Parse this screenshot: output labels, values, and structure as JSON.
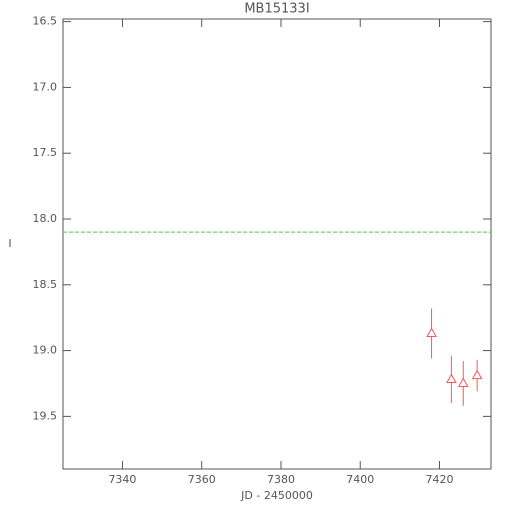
{
  "chart_data": {
    "type": "errorbar",
    "title": "MB15133I",
    "x_label": "JD - 2450000",
    "y_label": "I",
    "xlim": [
      7325,
      7433
    ],
    "xticks": [
      7340,
      7360,
      7380,
      7400,
      7420
    ],
    "ylim": [
      19.9,
      16.48
    ],
    "yticks": [
      {
        "value": 16.5,
        "label": "16.5"
      },
      {
        "value": 17.0,
        "label": "17.0"
      },
      {
        "value": 17.5,
        "label": "17.5"
      },
      {
        "value": 18.0,
        "label": "18.0"
      },
      {
        "value": 18.5,
        "label": "18.5"
      },
      {
        "value": 19.0,
        "label": "19.0"
      },
      {
        "value": 19.5,
        "label": "19.5"
      }
    ],
    "series": [
      {
        "color": "#ff5555",
        "x": [
          7418,
          7423,
          7426,
          7429.5
        ],
        "values": [
          18.87,
          19.22,
          19.25,
          19.19
        ],
        "errors": [
          0.19,
          0.18,
          0.17,
          0.12
        ]
      }
    ],
    "hlines": [
      {
        "value": 18.1,
        "color": "#44cc44"
      }
    ]
  }
}
